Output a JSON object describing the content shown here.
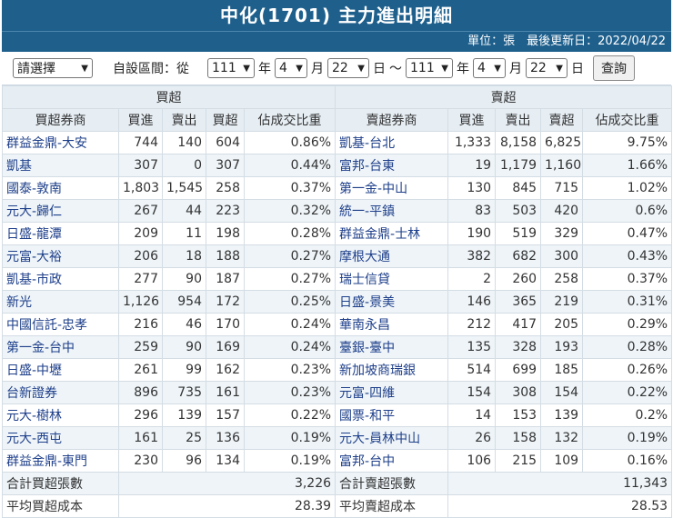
{
  "header": {
    "title": "中化(1701) 主力進出明細",
    "subtitle": "單位：張　最後更新日：2022/04/22"
  },
  "controls": {
    "preset": "請選擇",
    "custom_label": "自設區間：從",
    "from_year": "111",
    "year_label": "年",
    "from_month": "4",
    "month_label": "月",
    "from_day": "22",
    "day_label": "日",
    "tilde": "～",
    "to_year": "111",
    "to_month": "4",
    "to_day": "22",
    "query_label": "查詢"
  },
  "table": {
    "buy_section": "買超",
    "sell_section": "賣超",
    "columns_buy": [
      "買超券商",
      "買進",
      "賣出",
      "買超",
      "佔成交比重"
    ],
    "columns_sell": [
      "賣超券商",
      "買進",
      "賣出",
      "賣超",
      "佔成交比重"
    ],
    "rows": [
      {
        "b": [
          "群益金鼎-大安",
          "744",
          "140",
          "604",
          "0.86%"
        ],
        "s": [
          "凱基-台北",
          "1,333",
          "8,158",
          "6,825",
          "9.75%"
        ]
      },
      {
        "b": [
          "凱基",
          "307",
          "0",
          "307",
          "0.44%"
        ],
        "s": [
          "富邦-台東",
          "19",
          "1,179",
          "1,160",
          "1.66%"
        ]
      },
      {
        "b": [
          "國泰-敦南",
          "1,803",
          "1,545",
          "258",
          "0.37%"
        ],
        "s": [
          "第一金-中山",
          "130",
          "845",
          "715",
          "1.02%"
        ]
      },
      {
        "b": [
          "元大-歸仁",
          "267",
          "44",
          "223",
          "0.32%"
        ],
        "s": [
          "統一-平鎮",
          "83",
          "503",
          "420",
          "0.6%"
        ]
      },
      {
        "b": [
          "日盛-龍潭",
          "209",
          "11",
          "198",
          "0.28%"
        ],
        "s": [
          "群益金鼎-士林",
          "190",
          "519",
          "329",
          "0.47%"
        ]
      },
      {
        "b": [
          "元富-大裕",
          "206",
          "18",
          "188",
          "0.27%"
        ],
        "s": [
          "摩根大通",
          "382",
          "682",
          "300",
          "0.43%"
        ]
      },
      {
        "b": [
          "凱基-市政",
          "277",
          "90",
          "187",
          "0.27%"
        ],
        "s": [
          "瑞士信貸",
          "2",
          "260",
          "258",
          "0.37%"
        ]
      },
      {
        "b": [
          "新光",
          "1,126",
          "954",
          "172",
          "0.25%"
        ],
        "s": [
          "日盛-景美",
          "146",
          "365",
          "219",
          "0.31%"
        ]
      },
      {
        "b": [
          "中國信託-忠孝",
          "216",
          "46",
          "170",
          "0.24%"
        ],
        "s": [
          "華南永昌",
          "212",
          "417",
          "205",
          "0.29%"
        ]
      },
      {
        "b": [
          "第一金-台中",
          "259",
          "90",
          "169",
          "0.24%"
        ],
        "s": [
          "臺銀-臺中",
          "135",
          "328",
          "193",
          "0.28%"
        ]
      },
      {
        "b": [
          "日盛-中壢",
          "261",
          "99",
          "162",
          "0.23%"
        ],
        "s": [
          "新加坡商瑞銀",
          "514",
          "699",
          "185",
          "0.26%"
        ]
      },
      {
        "b": [
          "台新證券",
          "896",
          "735",
          "161",
          "0.23%"
        ],
        "s": [
          "元富-四維",
          "154",
          "308",
          "154",
          "0.22%"
        ]
      },
      {
        "b": [
          "元大-樹林",
          "296",
          "139",
          "157",
          "0.22%"
        ],
        "s": [
          "國票-和平",
          "14",
          "153",
          "139",
          "0.2%"
        ]
      },
      {
        "b": [
          "元大-西屯",
          "161",
          "25",
          "136",
          "0.19%"
        ],
        "s": [
          "元大-員林中山",
          "26",
          "158",
          "132",
          "0.19%"
        ]
      },
      {
        "b": [
          "群益金鼎-東門",
          "230",
          "96",
          "134",
          "0.19%"
        ],
        "s": [
          "富邦-台中",
          "106",
          "215",
          "109",
          "0.16%"
        ]
      }
    ],
    "total_buy_label": "合計買超張數",
    "total_buy": "3,226",
    "total_sell_label": "合計賣超張數",
    "total_sell": "11,343",
    "avg_buy_label": "平均買超成本",
    "avg_buy": "28.39",
    "avg_sell_label": "平均賣超成本",
    "avg_sell": "28.53"
  }
}
